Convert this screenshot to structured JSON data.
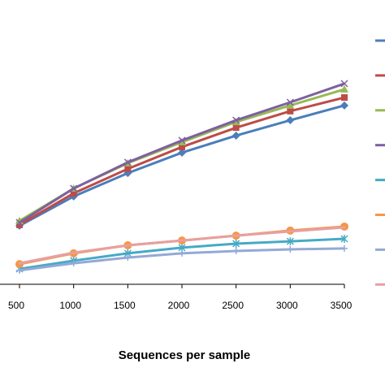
{
  "chart_data": {
    "type": "line",
    "x_label": "Sequences per sample",
    "x": [
      500,
      1000,
      1500,
      2000,
      2500,
      3000,
      3500
    ],
    "xlim": [
      500,
      3500
    ],
    "xticks": [
      500,
      1000,
      1500,
      2000,
      2500,
      3000,
      3500
    ],
    "ylim": [
      0,
      100
    ],
    "legend": "right",
    "series": [
      {
        "color": "#4a7ebb",
        "marker": "diamond",
        "values": [
          20.6,
          30.9,
          39.1,
          46.3,
          52.3,
          57.7,
          62.9
        ]
      },
      {
        "color": "#be4b48",
        "marker": "square",
        "values": [
          20.9,
          32,
          40.6,
          48.3,
          55.1,
          60.9,
          65.7
        ]
      },
      {
        "color": "#98b954",
        "marker": "triangle",
        "values": [
          22.3,
          33.7,
          42.6,
          50,
          57.1,
          62.9,
          68.6
        ]
      },
      {
        "color": "#7d60a0",
        "marker": "x",
        "values": [
          21.7,
          33.7,
          42.9,
          50.6,
          57.7,
          64,
          70.6
        ]
      },
      {
        "color": "#46aac5",
        "marker": "star",
        "values": [
          5.4,
          8.3,
          10.9,
          12.9,
          14.3,
          15.1,
          16
        ]
      },
      {
        "color": "#f79646",
        "marker": "circle",
        "values": [
          7.1,
          10.9,
          13.7,
          15.4,
          17.1,
          18.9,
          20.3
        ]
      },
      {
        "color": "#94a9d6",
        "marker": "plus",
        "values": [
          4.9,
          7.4,
          9.4,
          10.9,
          11.7,
          12.3,
          12.6
        ]
      },
      {
        "color": "#e6a0a0",
        "marker": "none",
        "values": [
          7.4,
          11.1,
          13.7,
          15.4,
          17.1,
          18.6,
          20
        ]
      }
    ]
  }
}
